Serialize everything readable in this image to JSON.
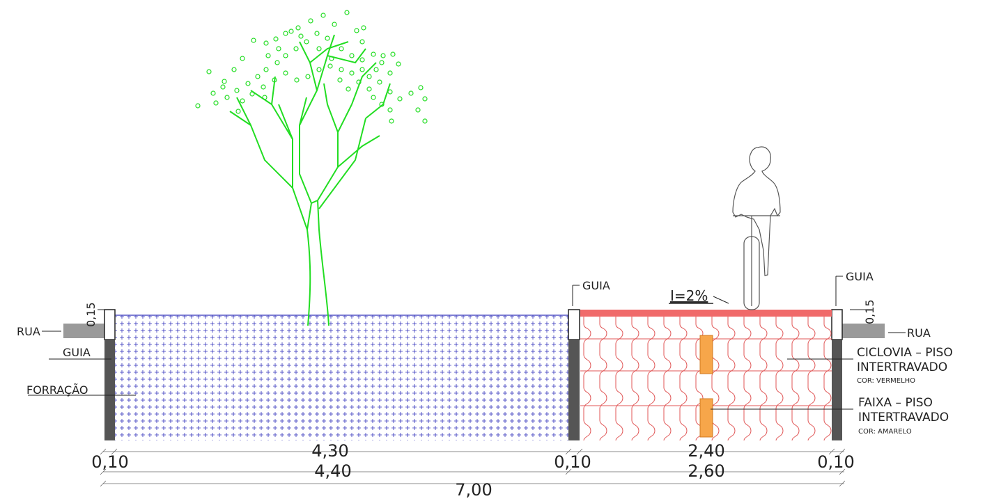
{
  "labels": {
    "rua_left": "RUA",
    "rua_right": "RUA",
    "guia_left": "GUIA",
    "guia_mid": "GUIA",
    "guia_right": "GUIA",
    "forracao": "FORRAÇÃO",
    "slope": "I=2%",
    "curb_height_left": "0,15",
    "curb_height_right": "0,15",
    "ciclovia_line1": "CICLOVIA – PISO",
    "ciclovia_line2": "INTERTRAVADO",
    "ciclovia_color": "COR: VERMELHO",
    "faixa_line1": "FAIXA – PISO",
    "faixa_line2": "INTERTRAVADO",
    "faixa_color": "COR: AMARELO"
  },
  "dimensions": {
    "row1": {
      "green_strip": "4,30",
      "bike_lane": "2,40"
    },
    "row2": {
      "curb_left": "0,10",
      "curb_mid": "0,10",
      "curb_right": "0,10",
      "green_total": "4,40",
      "bike_total": "2,60"
    },
    "row3": {
      "total": "7,00"
    }
  },
  "colors": {
    "tree": "#22dd22",
    "ground_hatch": "#3333bb",
    "bike_lane_surface": "#f06a6a",
    "pavers": "#e05555",
    "yellow_band": "#f7a64a",
    "curb": "#555555",
    "road": "#9a9a9a"
  }
}
